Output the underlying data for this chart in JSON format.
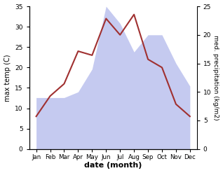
{
  "months": [
    "Jan",
    "Feb",
    "Mar",
    "Apr",
    "May",
    "Jun",
    "Jul",
    "Aug",
    "Sep",
    "Oct",
    "Nov",
    "Dec"
  ],
  "temp": [
    8,
    13,
    16,
    24,
    23,
    32,
    28,
    33,
    22,
    20,
    11,
    8
  ],
  "precip": [
    9,
    9,
    9,
    10,
    14,
    25,
    22,
    17,
    20,
    20,
    15,
    11
  ],
  "temp_color": "#a03030",
  "precip_color_fill": "#c5caf0",
  "temp_ylim": [
    0,
    35
  ],
  "precip_ylim": [
    0,
    25
  ],
  "temp_yticks": [
    0,
    5,
    10,
    15,
    20,
    25,
    30,
    35
  ],
  "precip_yticks": [
    0,
    5,
    10,
    15,
    20,
    25
  ],
  "ylabel_left": "max temp (C)",
  "ylabel_right": "med. precipitation (kg/m2)",
  "xlabel": "date (month)",
  "figsize": [
    3.18,
    2.47
  ],
  "dpi": 100
}
